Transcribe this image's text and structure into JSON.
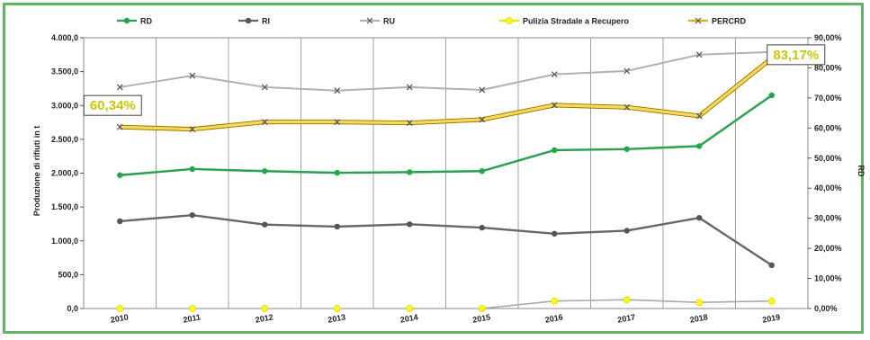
{
  "chart_data": {
    "type": "line",
    "categories": [
      "2010",
      "2011",
      "2012",
      "2013",
      "2014",
      "2015",
      "2016",
      "2017",
      "2018",
      "2019"
    ],
    "ylabel": "Produzione di rifiuti in t",
    "y2label": "RD",
    "ylim": [
      0,
      4000
    ],
    "y2lim": [
      0,
      90
    ],
    "yticks": [
      "0,0",
      "500,0",
      "1.000,0",
      "1.500,0",
      "2.000,0",
      "2.500,0",
      "3.000,0",
      "3.500,0",
      "4.000,0"
    ],
    "y2ticks": [
      "0,00%",
      "10,00%",
      "20,00%",
      "30,00%",
      "40,00%",
      "50,00%",
      "60,00%",
      "70,00%",
      "80,00%",
      "90,00%"
    ],
    "grid": "vertical",
    "legend_position": "top",
    "series": [
      {
        "name": "RD",
        "axis": "left",
        "color": "#1fa64a",
        "marker": "circle",
        "values": [
          1970,
          2060,
          2030,
          2005,
          2015,
          2030,
          2340,
          2355,
          2400,
          3150
        ]
      },
      {
        "name": "RI",
        "axis": "left",
        "color": "#666666",
        "marker": "circle",
        "values": [
          1290,
          1380,
          1240,
          1210,
          1245,
          1195,
          1105,
          1150,
          1340,
          640
        ]
      },
      {
        "name": "RU",
        "axis": "left",
        "color": "#b0b0b0",
        "marker": "x",
        "values": [
          3270,
          3440,
          3270,
          3220,
          3270,
          3230,
          3460,
          3510,
          3750,
          3790
        ]
      },
      {
        "name": "Pulizia Stradale a Recupero",
        "axis": "left",
        "color": "#ffff00",
        "marker": "circle",
        "values": [
          0,
          0,
          0,
          0,
          0,
          0,
          110,
          130,
          90,
          110
        ]
      },
      {
        "name": "PERCRD",
        "axis": "right",
        "color": "#f2b800",
        "marker": "x",
        "values": [
          60.34,
          59.6,
          62.0,
          62.0,
          61.7,
          62.8,
          67.6,
          66.9,
          64.0,
          83.17
        ]
      }
    ],
    "annotations": [
      {
        "label": "60,34%",
        "category": "2010",
        "series": "PERCRD"
      },
      {
        "label": "83,17%",
        "category": "2019",
        "series": "PERCRD"
      }
    ]
  }
}
